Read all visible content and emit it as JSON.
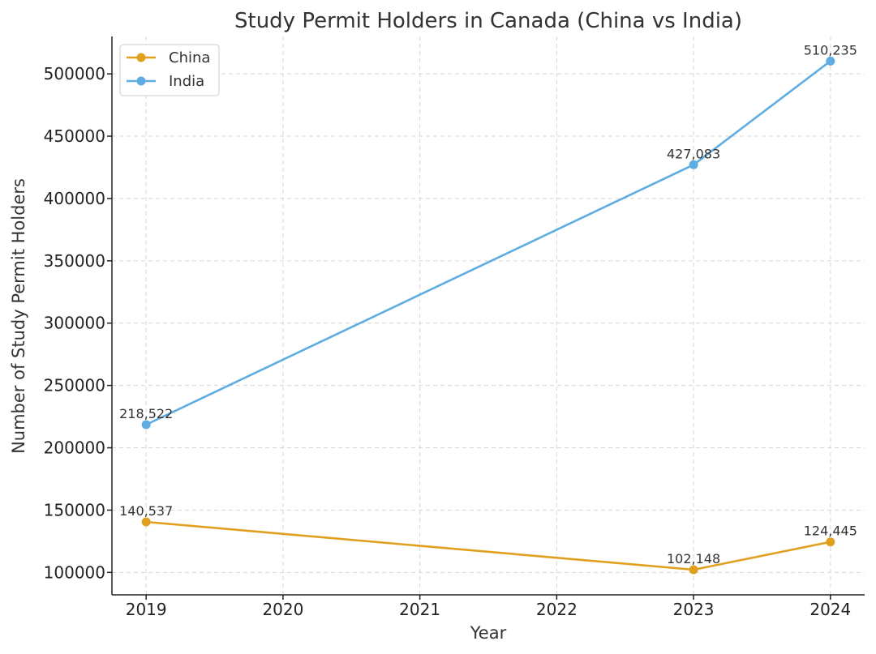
{
  "chart_data": {
    "type": "line",
    "title": "Study Permit Holders in Canada (China vs India)",
    "xlabel": "Year",
    "ylabel": "Number of Study Permit Holders",
    "x": [
      2019,
      2020,
      2021,
      2022,
      2023,
      2024
    ],
    "xlim": [
      2018.75,
      2024.25
    ],
    "ylim": [
      82000,
      530000
    ],
    "yticks": [
      100000,
      150000,
      200000,
      250000,
      300000,
      350000,
      400000,
      450000,
      500000
    ],
    "grid": true,
    "legend_position": "top-left",
    "series": [
      {
        "name": "China",
        "color": "#e0a01e",
        "points": [
          {
            "x": 2019,
            "y": 140537,
            "label": "140,537"
          },
          {
            "x": 2023,
            "y": 102148,
            "label": "102,148"
          },
          {
            "x": 2024,
            "y": 124445,
            "label": "124,445"
          }
        ]
      },
      {
        "name": "India",
        "color": "#5dade2",
        "points": [
          {
            "x": 2019,
            "y": 218522,
            "label": "218,522"
          },
          {
            "x": 2023,
            "y": 427083,
            "label": "427,083"
          },
          {
            "x": 2024,
            "y": 510235,
            "label": "510,235"
          }
        ]
      }
    ]
  }
}
